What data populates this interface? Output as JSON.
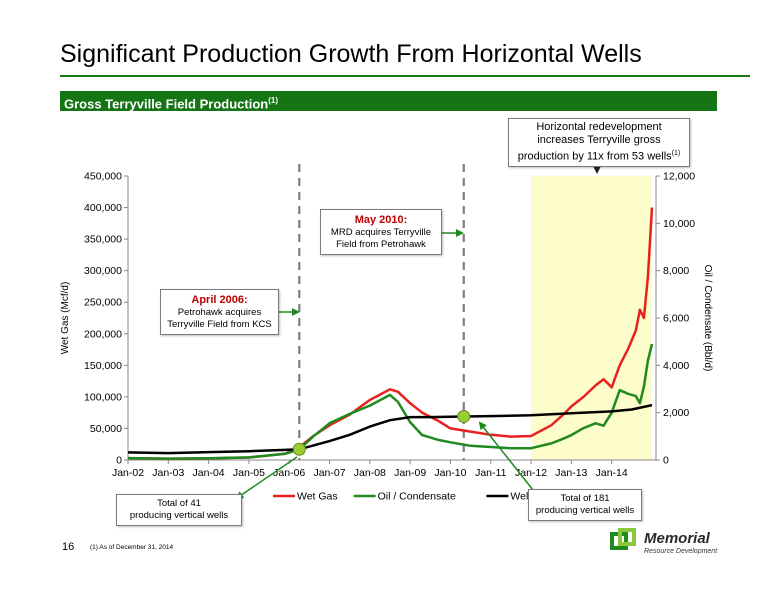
{
  "page": {
    "title": "Significant Production Growth From Horizontal Wells",
    "banner_text": "Gross Terryville Field Production",
    "banner_sup": "(1)",
    "page_number": "16",
    "footnote": "(1)    As of December 31, 2014",
    "logo_name": "Memorial",
    "logo_sub": "Resource Development"
  },
  "annotations": {
    "horizontal_line1": "Horizontal redevelopment",
    "horizontal_line2": "increases Terryville gross",
    "horizontal_line3": "production by 11x from 53 wells",
    "horizontal_sup": "(1)",
    "may_head": "May 2010:",
    "may_line1": "MRD acquires Terryville",
    "may_line2": "Field from Petrohawk",
    "april_head": "April 2006:",
    "april_line1": "Petrohawk acquires",
    "april_line2": "Terryville Field from KCS",
    "wells41_line1": "Total of 41",
    "wells41_line2": "producing vertical wells",
    "wells181_line1": "Total of 181",
    "wells181_line2": "producing vertical wells"
  },
  "chart_data": {
    "type": "line",
    "title": "",
    "xlabel": "",
    "ylabel": "Wet Gas (Mcf/d)",
    "y2label": "Oil / Condensate (Bbl/d)",
    "ylim": [
      0,
      450000
    ],
    "y2lim": [
      0,
      12000
    ],
    "yticks": [
      "0",
      "50,000",
      "100,000",
      "150,000",
      "200,000",
      "250,000",
      "300,000",
      "350,000",
      "400,000",
      "450,000"
    ],
    "y2ticks": [
      "0",
      "2,000",
      "4,000",
      "6,000",
      "8,000",
      "10,000",
      "12,000"
    ],
    "xlim": [
      2002,
      2015.1
    ],
    "xticks": [
      "Jan-02",
      "Jan-03",
      "Jan-04",
      "Jan-05",
      "Jan-06",
      "Jan-07",
      "Jan-08",
      "Jan-09",
      "Jan-10",
      "Jan-11",
      "Jan-12",
      "Jan-13",
      "Jan-14"
    ],
    "legend_position": "bottom",
    "grid": false,
    "shaded_region": [
      2012,
      2015
    ],
    "event_lines": [
      2006.25,
      2010.33
    ],
    "series": [
      {
        "name": "Wet Gas",
        "axis": "left",
        "color": "#e8201e",
        "x": [
          2002,
          2003,
          2004,
          2005,
          2005.9,
          2006.25,
          2006.6,
          2007,
          2007.5,
          2008,
          2008.5,
          2008.7,
          2009,
          2009.3,
          2009.7,
          2010,
          2010.5,
          2011,
          2011.5,
          2012,
          2012.5,
          2012.8,
          2013,
          2013.3,
          2013.6,
          2013.8,
          2014,
          2014.2,
          2014.4,
          2014.6,
          2014.7,
          2014.8,
          2014.9,
          2015
        ],
        "y": [
          3000,
          2000,
          2500,
          4000,
          10000,
          20000,
          38000,
          55000,
          72000,
          95000,
          112000,
          108000,
          90000,
          75000,
          62000,
          50000,
          45000,
          40000,
          37000,
          38000,
          55000,
          72000,
          85000,
          100000,
          118000,
          128000,
          115000,
          150000,
          175000,
          205000,
          238000,
          225000,
          290000,
          400000
        ]
      },
      {
        "name": "Oil / Condensate",
        "axis": "right",
        "color": "#1f8a1f",
        "x": [
          2002,
          2003,
          2004,
          2005,
          2005.9,
          2006.25,
          2006.6,
          2007,
          2007.5,
          2008,
          2008.5,
          2008.7,
          2009,
          2009.3,
          2009.7,
          2010,
          2010.5,
          2011,
          2011.5,
          2012,
          2012.5,
          2012.8,
          2013,
          2013.3,
          2013.6,
          2013.8,
          2014,
          2014.2,
          2014.4,
          2014.6,
          2014.7,
          2014.8,
          2014.9,
          2015
        ],
        "y": [
          80,
          60,
          70,
          110,
          260,
          450,
          1000,
          1550,
          1950,
          2300,
          2750,
          2450,
          1600,
          1050,
          850,
          750,
          600,
          550,
          500,
          500,
          700,
          900,
          1050,
          1350,
          1550,
          1450,
          2000,
          2950,
          2800,
          2700,
          2400,
          3100,
          4200,
          4900
        ]
      },
      {
        "name": "Well Count",
        "axis": "left",
        "color": "#000000",
        "x": [
          2002,
          2003,
          2004,
          2005,
          2005.9,
          2006.25,
          2007,
          2007.5,
          2008,
          2008.5,
          2009,
          2009.5,
          2010,
          2010.33,
          2011,
          2012,
          2013,
          2014,
          2014.5,
          2015
        ],
        "y": [
          12000,
          11000,
          12500,
          14000,
          16000,
          17000,
          30000,
          40000,
          53000,
          63000,
          68000,
          68000,
          68500,
          69000,
          69500,
          71000,
          74000,
          77000,
          80000,
          87000
        ]
      }
    ]
  }
}
